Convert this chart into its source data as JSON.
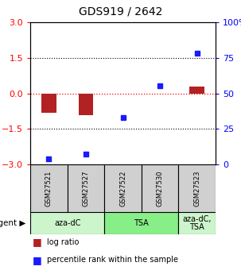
{
  "title": "GDS919 / 2642",
  "samples": [
    "GSM27521",
    "GSM27527",
    "GSM27522",
    "GSM27530",
    "GSM27523"
  ],
  "log_ratios": [
    -0.82,
    -0.93,
    0.0,
    0.0,
    0.3
  ],
  "percentile_ranks": [
    4.0,
    7.0,
    33.0,
    55.5,
    78.0
  ],
  "ylim": [
    -3,
    3
  ],
  "yticks_left": [
    -3,
    -1.5,
    0,
    1.5,
    3
  ],
  "yticks_right": [
    0,
    25,
    50,
    75,
    100
  ],
  "bar_color": "#b22222",
  "dot_color": "#1a1aff",
  "groups": [
    {
      "label": "aza-dC",
      "start": 0,
      "end": 2,
      "color": "#ccf5cc"
    },
    {
      "label": "TSA",
      "start": 2,
      "end": 4,
      "color": "#88ee88"
    },
    {
      "label": "aza-dC,\nTSA",
      "start": 4,
      "end": 5,
      "color": "#ccf5cc"
    }
  ],
  "legend_items": [
    {
      "color": "#b22222",
      "label": "log ratio"
    },
    {
      "color": "#1a1aff",
      "label": "percentile rank within the sample"
    }
  ],
  "background_color": "#ffffff",
  "header_bg": "#d0d0d0"
}
